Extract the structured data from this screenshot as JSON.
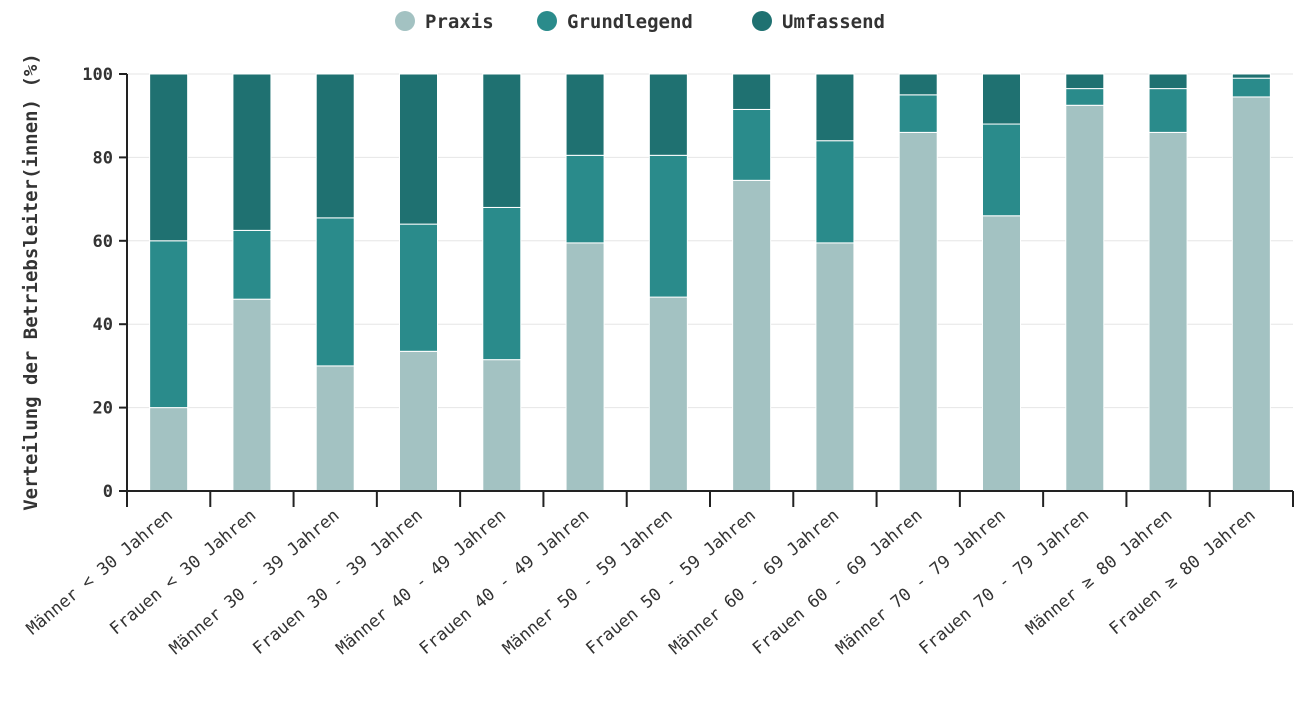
{
  "chart_data": {
    "type": "bar",
    "stacked": true,
    "categories": [
      "Männer < 30 Jahren",
      "Frauen < 30 Jahren",
      "Männer 30 - 39 Jahren",
      "Frauen 30 - 39 Jahren",
      "Männer 40 - 49 Jahren",
      "Frauen 40 - 49 Jahren",
      "Männer 50 - 59 Jahren",
      "Frauen 50 - 59 Jahren",
      "Männer 60 - 69 Jahren",
      "Frauen 60 - 69 Jahren",
      "Männer 70 - 79 Jahren",
      "Frauen 70 - 79 Jahren",
      "Männer ≥ 80 Jahren",
      "Frauen ≥ 80 Jahren"
    ],
    "series": [
      {
        "name": "Praxis",
        "color": "#a3c2c2",
        "values": [
          20,
          46,
          30,
          33.5,
          31.5,
          59.5,
          46.5,
          74.5,
          59.5,
          86,
          66,
          92.5,
          86,
          94.5
        ]
      },
      {
        "name": "Grundlegend",
        "color": "#2a8b8b",
        "values": [
          40,
          16.5,
          35.5,
          30.5,
          36.5,
          21,
          34,
          17,
          24.5,
          9,
          22,
          4,
          10.5,
          4.5
        ]
      },
      {
        "name": "Umfassend",
        "color": "#1f7171",
        "values": [
          40,
          37.5,
          34.5,
          36,
          32,
          19.5,
          19.5,
          8.5,
          16,
          5,
          12,
          3.5,
          3.5,
          1
        ]
      }
    ],
    "xlabel": "",
    "ylabel": "Verteilung der Betriebsleiter(innen) (%)",
    "ylim": [
      0,
      100
    ],
    "yticks": [
      0,
      20,
      40,
      60,
      80,
      100
    ],
    "grid": true,
    "legend": "top-center"
  }
}
